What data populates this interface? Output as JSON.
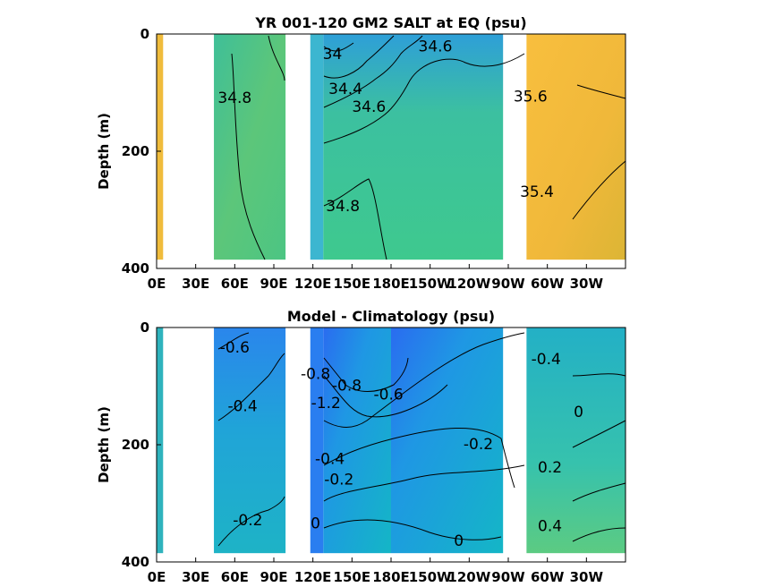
{
  "chart_data": [
    {
      "type": "heatmap",
      "title": "YR 001-120 GM2 SALT at EQ (psu)",
      "xlabel": "",
      "ylabel": "Depth (m)",
      "x_ticks": [
        "0E",
        "30E",
        "60E",
        "90E",
        "120E",
        "150E",
        "180E",
        "150W",
        "120W",
        "90W",
        "60W",
        "30W"
      ],
      "y_ticks": [
        "0",
        "200",
        "400"
      ],
      "xlim": [
        0,
        360
      ],
      "ylim": [
        400,
        0
      ],
      "y_reversed": true,
      "land_gaps_longitude": [
        [
          5,
          44
        ],
        [
          99,
          118
        ],
        [
          266,
          284
        ]
      ],
      "regions": [
        {
          "lon": [
            0,
            5
          ],
          "depth": [
            0,
            385
          ],
          "value": 35.8,
          "color": "#f0bc3c"
        },
        {
          "lon": [
            44,
            99
          ],
          "depth": [
            0,
            385
          ],
          "value": 34.8,
          "color": "#5cc77a"
        },
        {
          "lon": [
            118,
            128
          ],
          "depth": [
            0,
            385
          ],
          "value": 34.2,
          "color": "#3cb6d0"
        },
        {
          "lon": [
            128,
            180
          ],
          "depth": [
            0,
            385
          ],
          "value": 34.5,
          "color": "#40c39a"
        },
        {
          "lon": [
            180,
            266
          ],
          "depth": [
            0,
            385
          ],
          "value": 34.6,
          "color": "#3ecb8e"
        },
        {
          "lon": [
            284,
            360
          ],
          "depth": [
            0,
            385
          ],
          "value": 35.6,
          "color": "#f2b83a"
        }
      ],
      "contour_labels": [
        {
          "text": "34.8",
          "lon": 60,
          "depth": 110
        },
        {
          "text": "34",
          "lon": 135,
          "depth": 35
        },
        {
          "text": "34.4",
          "lon": 145,
          "depth": 95
        },
        {
          "text": "34.6",
          "lon": 163,
          "depth": 125
        },
        {
          "text": "34.6",
          "lon": 214,
          "depth": 22
        },
        {
          "text": "34.8",
          "lon": 143,
          "depth": 295
        },
        {
          "text": "35.6",
          "lon": 287,
          "depth": 108
        },
        {
          "text": "35.4",
          "lon": 292,
          "depth": 270
        }
      ]
    },
    {
      "type": "heatmap",
      "title": "Model - Climatology (psu)",
      "xlabel": "",
      "ylabel": "Depth (m)",
      "x_ticks": [
        "0E",
        "30E",
        "60E",
        "90E",
        "120E",
        "150E",
        "180E",
        "150W",
        "120W",
        "90W",
        "60W",
        "30W"
      ],
      "y_ticks": [
        "0",
        "200",
        "400"
      ],
      "xlim": [
        0,
        360
      ],
      "ylim": [
        400,
        0
      ],
      "y_reversed": true,
      "land_gaps_longitude": [
        [
          5,
          44
        ],
        [
          99,
          118
        ],
        [
          266,
          284
        ]
      ],
      "regions": [
        {
          "lon": [
            0,
            5
          ],
          "depth": [
            0,
            385
          ],
          "value": -0.1,
          "color": "#2fb3bd"
        },
        {
          "lon": [
            44,
            99
          ],
          "depth": [
            0,
            385
          ],
          "value": -0.4,
          "color": "#28a3d8"
        },
        {
          "lon": [
            118,
            128
          ],
          "depth": [
            0,
            385
          ],
          "value": -0.9,
          "color": "#2a7ef0"
        },
        {
          "lon": [
            128,
            180
          ],
          "depth": [
            0,
            385
          ],
          "value": -0.6,
          "color": "#208ee8"
        },
        {
          "lon": [
            180,
            266
          ],
          "depth": [
            0,
            385
          ],
          "value": -0.3,
          "color": "#1eaed0"
        },
        {
          "lon": [
            284,
            360
          ],
          "depth": [
            0,
            385
          ],
          "value": 0.1,
          "color": "#33bfae"
        }
      ],
      "contour_labels": [
        {
          "text": "-0.6",
          "lon": 60,
          "depth": 35
        },
        {
          "text": "-0.4",
          "lon": 66,
          "depth": 135
        },
        {
          "text": "-0.2",
          "lon": 70,
          "depth": 330
        },
        {
          "text": "-0.8",
          "lon": 122,
          "depth": 80
        },
        {
          "text": "-1.2",
          "lon": 130,
          "depth": 130
        },
        {
          "text": "-0.8",
          "lon": 146,
          "depth": 100
        },
        {
          "text": "-0.6",
          "lon": 178,
          "depth": 115
        },
        {
          "text": "-0.4",
          "lon": 133,
          "depth": 225
        },
        {
          "text": "-0.2",
          "lon": 140,
          "depth": 260
        },
        {
          "text": "0",
          "lon": 122,
          "depth": 335
        },
        {
          "text": "0",
          "lon": 232,
          "depth": 365
        },
        {
          "text": "-0.2",
          "lon": 247,
          "depth": 200
        },
        {
          "text": "-0.4",
          "lon": 299,
          "depth": 55
        },
        {
          "text": "0",
          "lon": 324,
          "depth": 145
        },
        {
          "text": "0.2",
          "lon": 302,
          "depth": 240
        },
        {
          "text": "0.4",
          "lon": 302,
          "depth": 340
        }
      ]
    }
  ]
}
